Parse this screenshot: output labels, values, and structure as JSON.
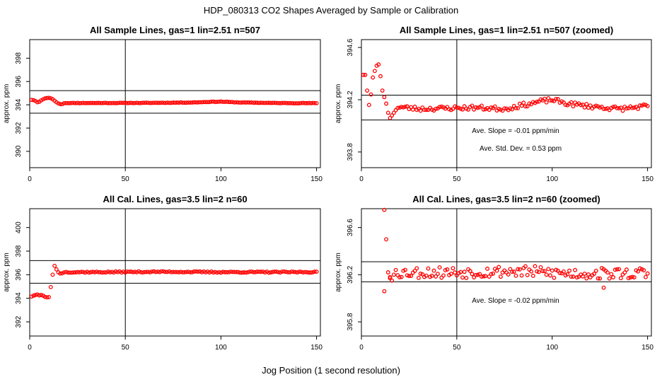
{
  "figure": {
    "title": "HDP_080313  CO2 Shapes Averaged by Sample or Calibration",
    "xlabel": "Jog Position (1 second resolution)"
  },
  "colors": {
    "points": "#ff0000",
    "lines": "#000000",
    "background": "#ffffff"
  },
  "chart_data": [
    {
      "type": "scatter",
      "title": "All Sample Lines, gas=1 lin=2.51 n=507",
      "ylabel": "approx. ppm",
      "xlim": [
        0,
        152
      ],
      "ylim": [
        388.6,
        399.6
      ],
      "xticks": [
        0,
        50,
        100,
        150
      ],
      "yticks": [
        390,
        392,
        394,
        396,
        398
      ],
      "hlines": [
        393.28,
        395.22
      ],
      "vline": 50,
      "base": 394.15,
      "early": [
        394.42,
        394.4,
        394.33,
        394.22,
        394.26,
        394.38,
        394.47,
        394.55,
        394.58,
        394.6,
        394.56,
        394.48,
        394.35,
        394.22,
        394.12,
        394.06,
        394.05
      ],
      "late": [
        [
          60,
          394.16
        ],
        [
          85,
          394.2
        ],
        [
          95,
          394.26
        ],
        [
          100,
          394.27
        ],
        [
          110,
          394.2
        ],
        [
          130,
          394.15
        ],
        [
          150,
          394.14
        ]
      ],
      "noise": 0.02,
      "seed": 11,
      "annotations": []
    },
    {
      "type": "scatter",
      "title": "All Sample Lines, gas=1 lin=2.51 n=507 (zoomed)",
      "ylabel": "approx. ppm",
      "xlim": [
        0,
        152
      ],
      "ylim": [
        393.68,
        394.66
      ],
      "xticks": [
        0,
        50,
        100,
        150
      ],
      "yticks": [
        393.8,
        394.2,
        394.6
      ],
      "hlines": [
        394.235,
        394.045
      ],
      "vline": 50,
      "base": 394.145,
      "early": [
        394.39,
        394.39,
        394.27,
        394.16,
        394.24,
        394.37,
        394.42,
        394.46,
        394.47,
        394.38,
        394.27,
        394.22,
        394.17,
        394.1,
        394.06,
        394.08,
        394.1,
        394.12
      ],
      "late": [
        [
          30,
          394.13
        ],
        [
          60,
          394.14
        ],
        [
          75,
          394.13
        ],
        [
          85,
          394.16
        ],
        [
          95,
          394.19
        ],
        [
          100,
          394.2
        ],
        [
          108,
          394.17
        ],
        [
          120,
          394.15
        ],
        [
          135,
          394.13
        ],
        [
          150,
          394.15
        ]
      ],
      "noise": 0.017,
      "seed": 23,
      "annotations": [
        "Ave. Slope =  -0.01  ppm/min",
        "Ave. Std. Dev. =  0.53  ppm"
      ]
    },
    {
      "type": "scatter",
      "title": "All Cal. Lines, gas=3.5 lin=2 n=60",
      "ylabel": "approx. ppm",
      "xlim": [
        0,
        152
      ],
      "ylim": [
        390.8,
        401.6
      ],
      "xticks": [
        0,
        50,
        100,
        150
      ],
      "yticks": [
        392,
        394,
        396,
        398,
        400
      ],
      "hlines": [
        397.2,
        395.28
      ],
      "vline": 50,
      "base": 396.22,
      "early": [
        394.15,
        394.22,
        394.28,
        394.32,
        394.25,
        394.28,
        394.22,
        394.12,
        394.08,
        394.1,
        394.95,
        396.0,
        396.75,
        396.45,
        396.2,
        396.1,
        396.12
      ],
      "late": [
        [
          40,
          396.22
        ],
        [
          70,
          396.25
        ],
        [
          100,
          396.22
        ],
        [
          130,
          396.22
        ],
        [
          150,
          396.23
        ]
      ],
      "noise": 0.05,
      "seed": 37,
      "annotations": []
    },
    {
      "type": "scatter",
      "title": "All Cal. Lines, gas=3.5 lin=2 n=60 (zoomed)",
      "ylabel": "approx. ppm",
      "xlim": [
        0,
        152
      ],
      "ylim": [
        395.68,
        396.76
      ],
      "xticks": [
        0,
        50,
        100,
        150
      ],
      "yticks": [
        395.8,
        396.2,
        396.6
      ],
      "hlines": [
        396.31,
        396.14
      ],
      "vline": 50,
      "base": 396.22,
      "early": [
        396.75,
        396.5,
        396.22,
        396.18,
        396.15,
        396.2,
        396.24
      ],
      "earlyStart": 12,
      "late": [
        [
          20,
          396.22
        ],
        [
          50,
          396.22
        ],
        [
          80,
          396.23
        ],
        [
          110,
          396.21
        ],
        [
          150,
          396.21
        ]
      ],
      "noise": 0.05,
      "seed": 53,
      "extra": [
        [
          12,
          396.06
        ],
        [
          15,
          396.17
        ],
        [
          127,
          396.09
        ]
      ],
      "annotations": [
        "Ave. Slope =  -0.02  ppm/min"
      ]
    }
  ]
}
